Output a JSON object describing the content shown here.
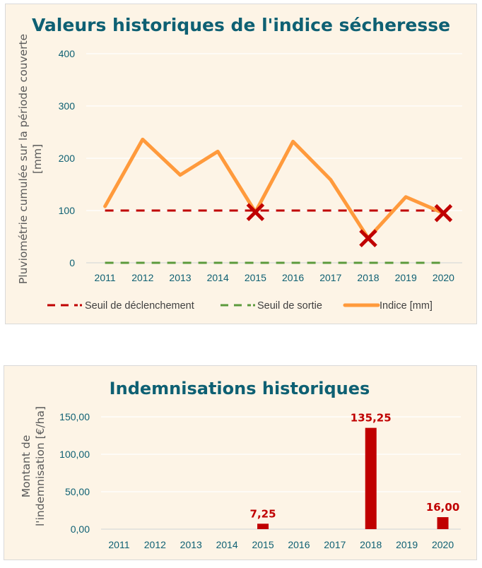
{
  "chart_data": [
    {
      "type": "line",
      "title": "Valeurs historiques de l'indice sécheresse",
      "xlabel": "",
      "ylabel": "Pluviométrie cumulée sur la période couverte [mm]",
      "ylabel_lines": [
        "Pluviométrie cumulée sur la période couverte",
        "[mm]"
      ],
      "categories": [
        "2011",
        "2012",
        "2013",
        "2014",
        "2015",
        "2016",
        "2017",
        "2018",
        "2019",
        "2020"
      ],
      "ylim": [
        0,
        400
      ],
      "yticks": [
        0,
        100,
        200,
        300,
        400
      ],
      "ytick_labels": [
        "0",
        "100",
        "200",
        "300",
        "400"
      ],
      "grid": true,
      "legend_position": "bottom",
      "series": [
        {
          "name": "Seuil de déclenchement",
          "style": "dashed",
          "color": "#c00000",
          "values": [
            100,
            100,
            100,
            100,
            100,
            100,
            100,
            100,
            100,
            100
          ]
        },
        {
          "name": "Seuil de sortie",
          "style": "dashed",
          "color": "#5b9a3c",
          "values": [
            0,
            0,
            0,
            0,
            0,
            0,
            0,
            0,
            0,
            0
          ]
        },
        {
          "name": "Indice [mm]",
          "style": "solid",
          "color": "#ff9a3c",
          "values": [
            108,
            236,
            168,
            213,
            97,
            232,
            159,
            47,
            126,
            95
          ]
        }
      ],
      "markers": {
        "symbol": "x",
        "color": "#c00000",
        "points": [
          {
            "x": "2015",
            "y": 97
          },
          {
            "x": "2018",
            "y": 47
          },
          {
            "x": "2020",
            "y": 95
          }
        ]
      }
    },
    {
      "type": "bar",
      "title": "Indemnisations historiques",
      "xlabel": "",
      "ylabel": "Montant de l'indemnisation [€/ha]",
      "ylabel_lines": [
        "Montant de",
        "l'indemnisation [€/ha]"
      ],
      "categories": [
        "2011",
        "2012",
        "2013",
        "2014",
        "2015",
        "2016",
        "2017",
        "2018",
        "2019",
        "2020"
      ],
      "values": [
        0,
        0,
        0,
        0,
        7.25,
        0,
        0,
        135.25,
        0,
        16.0
      ],
      "data_labels": [
        "",
        "",
        "",
        "",
        "7,25",
        "",
        "",
        "135,25",
        "",
        "16,00"
      ],
      "ylim": [
        0,
        150
      ],
      "yticks": [
        0,
        50,
        100,
        150
      ],
      "ytick_labels": [
        "0,00",
        "50,00",
        "100,00",
        "150,00"
      ],
      "grid": true,
      "color": "#c00000"
    }
  ]
}
